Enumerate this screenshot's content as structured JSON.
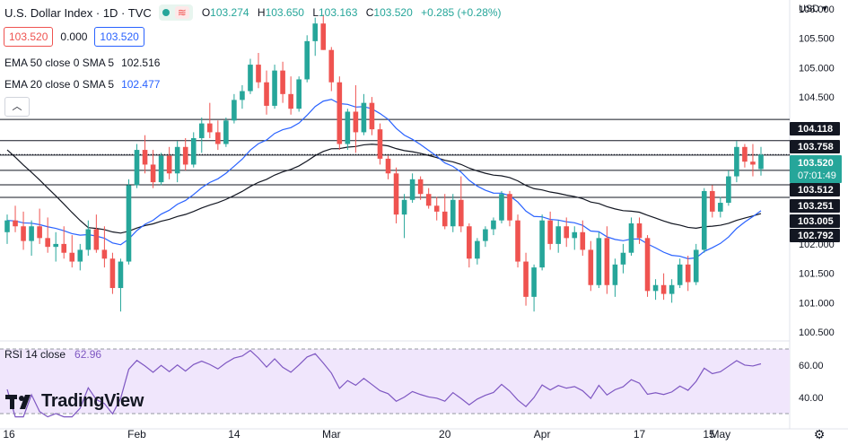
{
  "header": {
    "symbol": "U.S. Dollar Index · 1D · TVC",
    "waves": "≋",
    "ohlc": [
      {
        "label": "O",
        "value": "103.274"
      },
      {
        "label": "H",
        "value": "103.650"
      },
      {
        "label": "L",
        "value": "103.163"
      },
      {
        "label": "C",
        "value": "103.520"
      }
    ],
    "change": "+0.285 (+0.28%)"
  },
  "quote": {
    "bid": "103.520",
    "spread": "0.000",
    "ask": "103.520"
  },
  "indicators": [
    {
      "label": "EMA 50 close 0 SMA 5",
      "value": "102.516",
      "color": "#131722"
    },
    {
      "label": "EMA 20 close 0 SMA 5",
      "value": "102.477",
      "color": "#2962ff"
    }
  ],
  "collapse_label": "︿",
  "rsi": {
    "label": "RSI 14 close",
    "value": "62.96"
  },
  "logo": {
    "mark": "TV",
    "word": "TradingView"
  },
  "currency": "USD",
  "currency_caret": "▾",
  "settings_icon": "⚙",
  "colors": {
    "up": "#26a69a",
    "down": "#ef5350",
    "ema50": "#131722",
    "ema20": "#2962ff",
    "rsi": "#7e57c2",
    "rsi_band": "#f0e6fc"
  },
  "chart_data": {
    "type": "candlestick",
    "x_tick_labels": [
      "16",
      "Feb",
      "14",
      "Mar",
      "20",
      "Apr",
      "17",
      "May",
      "15"
    ],
    "y_tick_labels": [
      "106.000",
      "105.500",
      "105.000",
      "104.500",
      "102.000",
      "101.500",
      "101.000",
      "100.500"
    ],
    "ylim": [
      100.35,
      106.15
    ],
    "candles": [
      [
        102.2,
        102.5,
        102.0,
        102.4
      ],
      [
        102.4,
        102.65,
        102.2,
        102.3
      ],
      [
        102.3,
        102.55,
        101.9,
        102.05
      ],
      [
        102.05,
        102.4,
        101.8,
        102.3
      ],
      [
        102.3,
        102.6,
        102.0,
        102.1
      ],
      [
        102.1,
        102.45,
        101.85,
        101.95
      ],
      [
        101.95,
        102.2,
        101.7,
        102.0
      ],
      [
        102.0,
        102.3,
        101.75,
        101.85
      ],
      [
        101.85,
        102.15,
        101.6,
        101.7
      ],
      [
        101.7,
        102.0,
        101.55,
        101.9
      ],
      [
        101.9,
        102.4,
        101.8,
        102.25
      ],
      [
        102.25,
        102.5,
        101.85,
        101.9
      ],
      [
        101.9,
        102.3,
        101.6,
        101.75
      ],
      [
        101.75,
        101.85,
        101.15,
        101.25
      ],
      [
        101.25,
        101.75,
        100.85,
        101.7
      ],
      [
        101.7,
        103.1,
        101.65,
        103.0
      ],
      [
        103.0,
        103.7,
        102.95,
        103.6
      ],
      [
        103.6,
        103.85,
        103.2,
        103.35
      ],
      [
        103.35,
        103.6,
        102.95,
        103.05
      ],
      [
        103.05,
        103.55,
        103.0,
        103.5
      ],
      [
        103.5,
        103.65,
        103.1,
        103.2
      ],
      [
        103.2,
        103.75,
        103.05,
        103.65
      ],
      [
        103.65,
        103.8,
        103.25,
        103.35
      ],
      [
        103.35,
        103.9,
        103.3,
        103.8
      ],
      [
        103.8,
        104.15,
        103.55,
        104.05
      ],
      [
        104.05,
        104.4,
        103.8,
        103.9
      ],
      [
        103.9,
        104.1,
        103.6,
        103.7
      ],
      [
        103.7,
        104.15,
        103.65,
        104.1
      ],
      [
        104.1,
        104.55,
        104.05,
        104.45
      ],
      [
        104.45,
        104.7,
        104.3,
        104.6
      ],
      [
        104.6,
        105.15,
        104.55,
        105.05
      ],
      [
        105.05,
        105.25,
        104.65,
        104.75
      ],
      [
        104.75,
        104.95,
        104.2,
        104.35
      ],
      [
        104.35,
        105.05,
        104.3,
        104.95
      ],
      [
        104.95,
        105.1,
        104.4,
        104.55
      ],
      [
        104.55,
        104.85,
        104.2,
        104.3
      ],
      [
        104.3,
        104.85,
        104.25,
        104.8
      ],
      [
        104.8,
        105.55,
        104.75,
        105.45
      ],
      [
        105.45,
        105.85,
        105.2,
        105.75
      ],
      [
        105.75,
        105.9,
        105.3,
        105.3
      ],
      [
        105.3,
        105.35,
        104.6,
        104.75
      ],
      [
        104.75,
        104.85,
        103.6,
        103.7
      ],
      [
        103.7,
        104.3,
        103.6,
        104.25
      ],
      [
        104.25,
        104.7,
        103.55,
        103.9
      ],
      [
        103.9,
        104.55,
        103.85,
        104.4
      ],
      [
        104.4,
        104.5,
        103.85,
        103.95
      ],
      [
        103.95,
        104.05,
        103.35,
        103.45
      ],
      [
        103.45,
        103.5,
        103.1,
        103.2
      ],
      [
        103.2,
        103.3,
        102.35,
        102.5
      ],
      [
        102.5,
        102.85,
        102.1,
        102.75
      ],
      [
        102.75,
        103.2,
        102.7,
        103.1
      ],
      [
        103.1,
        103.15,
        102.75,
        102.85
      ],
      [
        102.85,
        102.95,
        102.6,
        102.65
      ],
      [
        102.65,
        102.8,
        102.4,
        102.55
      ],
      [
        102.55,
        102.85,
        102.25,
        102.3
      ],
      [
        102.3,
        102.85,
        102.2,
        102.75
      ],
      [
        102.75,
        103.15,
        102.2,
        102.3
      ],
      [
        102.3,
        102.35,
        101.6,
        101.75
      ],
      [
        101.75,
        102.1,
        101.65,
        102.05
      ],
      [
        102.05,
        102.3,
        101.95,
        102.25
      ],
      [
        102.25,
        102.45,
        102.15,
        102.4
      ],
      [
        102.4,
        102.9,
        102.35,
        102.85
      ],
      [
        102.85,
        102.9,
        102.3,
        102.4
      ],
      [
        102.4,
        102.5,
        101.6,
        101.7
      ],
      [
        101.7,
        101.85,
        100.95,
        101.1
      ],
      [
        101.1,
        101.65,
        100.85,
        101.6
      ],
      [
        101.6,
        102.5,
        101.55,
        102.4
      ],
      [
        102.4,
        102.55,
        101.9,
        102.0
      ],
      [
        102.0,
        102.4,
        101.85,
        102.3
      ],
      [
        102.3,
        102.45,
        101.95,
        102.1
      ],
      [
        102.1,
        102.3,
        101.9,
        102.2
      ],
      [
        102.2,
        102.4,
        101.8,
        101.9
      ],
      [
        101.9,
        102.05,
        101.2,
        101.3
      ],
      [
        101.3,
        102.2,
        101.25,
        102.1
      ],
      [
        102.1,
        102.3,
        101.15,
        101.3
      ],
      [
        101.3,
        101.75,
        101.1,
        101.65
      ],
      [
        101.65,
        102.0,
        101.5,
        101.85
      ],
      [
        101.85,
        102.45,
        101.8,
        102.35
      ],
      [
        102.35,
        102.45,
        102.0,
        102.1
      ],
      [
        102.1,
        102.15,
        101.1,
        101.2
      ],
      [
        101.2,
        101.4,
        101.05,
        101.3
      ],
      [
        101.3,
        101.5,
        101.05,
        101.15
      ],
      [
        101.15,
        101.4,
        101.0,
        101.3
      ],
      [
        101.3,
        101.75,
        101.25,
        101.65
      ],
      [
        101.65,
        101.8,
        101.2,
        101.35
      ],
      [
        101.35,
        102.0,
        101.3,
        101.9
      ],
      [
        101.9,
        102.95,
        101.85,
        102.9
      ],
      [
        102.9,
        103.0,
        102.45,
        102.55
      ],
      [
        102.55,
        102.8,
        102.45,
        102.7
      ],
      [
        102.7,
        103.25,
        102.65,
        103.15
      ],
      [
        103.15,
        103.75,
        103.05,
        103.65
      ],
      [
        103.65,
        103.7,
        103.3,
        103.4
      ],
      [
        103.4,
        103.7,
        103.15,
        103.35
      ],
      [
        103.274,
        103.65,
        103.163,
        103.52
      ]
    ],
    "levels": [
      {
        "value": 104.118,
        "label": "104.118"
      },
      {
        "value": 103.758,
        "label": "103.758"
      },
      {
        "value": 103.512,
        "label": "103.512"
      },
      {
        "value": 103.251,
        "label": "103.251"
      },
      {
        "value": 103.005,
        "label": "103.005"
      },
      {
        "value": 102.792,
        "label": "102.792"
      }
    ],
    "last_price": {
      "value": 103.52,
      "label": "103.520",
      "countdown": "07:01:49"
    },
    "rsi": {
      "ylim": [
        25,
        75
      ],
      "band": [
        30,
        70
      ],
      "tick_labels": [
        "60.00",
        "40.00"
      ],
      "tick_values": [
        60,
        40
      ]
    }
  }
}
